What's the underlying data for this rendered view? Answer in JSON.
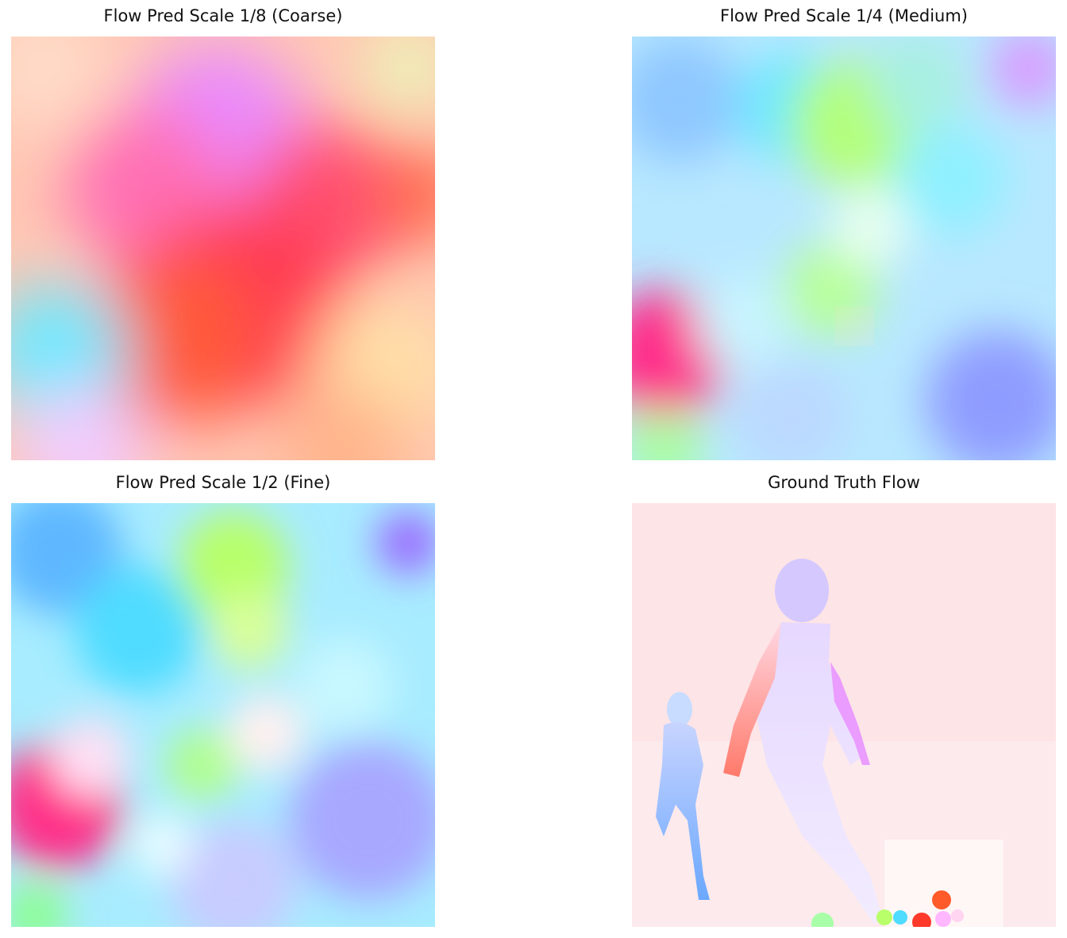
{
  "figure": {
    "panels": [
      {
        "title": "Flow Pred Scale 1/8 (Coarse)"
      },
      {
        "title": "Flow Pred Scale 1/4 (Medium)"
      },
      {
        "title": "Flow Pred Scale 1/2 (Fine)"
      },
      {
        "title": "Ground Truth Flow"
      }
    ]
  }
}
